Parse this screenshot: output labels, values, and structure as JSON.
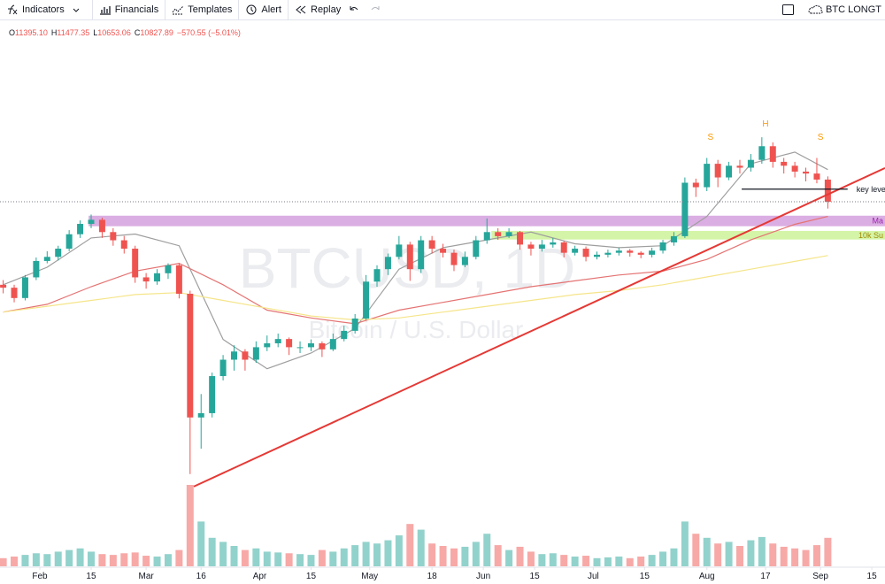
{
  "toolbar": {
    "items": [
      "Indicators",
      "Financials",
      "Templates",
      "Alert",
      "Replay"
    ],
    "layout_name": "BTC LONGT"
  },
  "chart_data": {
    "type": "candlestick",
    "symbol_watermark": "BTCUSD, 1D",
    "description_watermark": "Bitcoin / U.S. Dollar",
    "legend": [
      {
        "label": "O",
        "value": "11395.10"
      },
      {
        "label": "H",
        "value": "11477.35"
      },
      {
        "label": "L",
        "value": "10653.06"
      },
      {
        "label": "C",
        "value": "10827.89"
      }
    ],
    "change": "−570.55 (−5.01%)",
    "xlim": [
      -0.87,
      240.6
    ],
    "xticks": [
      {
        "value": 10,
        "label": "Feb"
      },
      {
        "value": 24,
        "label": "15"
      },
      {
        "value": 39,
        "label": "Mar"
      },
      {
        "value": 54,
        "label": "16"
      },
      {
        "value": 70,
        "label": "Apr"
      },
      {
        "value": 84,
        "label": "15"
      },
      {
        "value": 100,
        "label": "May"
      },
      {
        "value": 117,
        "label": "18"
      },
      {
        "value": 131,
        "label": "Jun"
      },
      {
        "value": 145,
        "label": "15"
      },
      {
        "value": 161,
        "label": "Jul"
      },
      {
        "value": 175,
        "label": "15"
      },
      {
        "value": 192,
        "label": "Aug"
      },
      {
        "value": 208,
        "label": "17"
      },
      {
        "value": 223,
        "label": "Sep"
      },
      {
        "value": 237,
        "label": "15"
      }
    ],
    "ylim": [
      3300,
      15430
    ],
    "up_color": "#26a69a",
    "down_color": "#ef5350",
    "x": [
      0,
      3,
      6,
      9,
      12,
      15,
      18,
      21,
      24,
      27,
      30,
      33,
      36,
      39,
      42,
      45,
      48,
      51,
      54,
      57,
      60,
      63,
      66,
      69,
      72,
      75,
      78,
      81,
      84,
      87,
      90,
      93,
      96,
      99,
      102,
      105,
      108,
      111,
      114,
      117,
      120,
      123,
      126,
      129,
      132,
      135,
      138,
      141,
      144,
      147,
      150,
      153,
      156,
      159,
      162,
      165,
      168,
      171,
      174,
      177,
      180,
      183,
      186,
      189,
      192,
      195,
      198,
      201,
      204,
      207,
      210,
      213,
      216,
      219,
      222,
      225
    ],
    "ohlc": [
      [
        8700,
        8820,
        8480,
        8625
      ],
      [
        8625,
        8700,
        8250,
        8360
      ],
      [
        8360,
        8950,
        8300,
        8890
      ],
      [
        8890,
        9400,
        8820,
        9310
      ],
      [
        9310,
        9560,
        9250,
        9415
      ],
      [
        9415,
        9700,
        9320,
        9625
      ],
      [
        9625,
        10100,
        9560,
        9995
      ],
      [
        9995,
        10350,
        9900,
        10260
      ],
      [
        10260,
        10500,
        10150,
        10365
      ],
      [
        10365,
        10420,
        9900,
        10050
      ],
      [
        10050,
        10150,
        9700,
        9840
      ],
      [
        9840,
        9950,
        9500,
        9625
      ],
      [
        9625,
        9700,
        8750,
        8890
      ],
      [
        8890,
        9000,
        8600,
        8785
      ],
      [
        8785,
        9100,
        8700,
        8995
      ],
      [
        8995,
        9250,
        8850,
        9200
      ],
      [
        9200,
        9250,
        8350,
        8470
      ],
      [
        8470,
        8550,
        3850,
        5300
      ],
      [
        5300,
        5900,
        4500,
        5410
      ],
      [
        5410,
        6450,
        5300,
        6360
      ],
      [
        6360,
        6900,
        6250,
        6780
      ],
      [
        6780,
        7150,
        6500,
        6990
      ],
      [
        6990,
        7050,
        6500,
        6780
      ],
      [
        6780,
        7250,
        6700,
        7100
      ],
      [
        7100,
        7400,
        7000,
        7200
      ],
      [
        7200,
        7450,
        7100,
        7310
      ],
      [
        7310,
        7350,
        6900,
        7100
      ],
      [
        7100,
        7250,
        6950,
        7100
      ],
      [
        7100,
        7300,
        7000,
        7200
      ],
      [
        7200,
        7250,
        6850,
        7045
      ],
      [
        7045,
        7450,
        7000,
        7310
      ],
      [
        7310,
        7650,
        7250,
        7520
      ],
      [
        7520,
        7950,
        7450,
        7835
      ],
      [
        7835,
        8950,
        7800,
        8780
      ],
      [
        8780,
        9200,
        8650,
        9100
      ],
      [
        9100,
        9500,
        8950,
        9415
      ],
      [
        9415,
        9950,
        9350,
        9730
      ],
      [
        9730,
        9800,
        8800,
        9100
      ],
      [
        9100,
        9950,
        9000,
        9840
      ],
      [
        9840,
        9950,
        9500,
        9625
      ],
      [
        9625,
        9750,
        9400,
        9520
      ],
      [
        9520,
        9600,
        9050,
        9205
      ],
      [
        9205,
        9550,
        9150,
        9415
      ],
      [
        9415,
        9950,
        9350,
        9840
      ],
      [
        9840,
        10400,
        9750,
        10050
      ],
      [
        10050,
        10150,
        9850,
        9945
      ],
      [
        9945,
        10150,
        9900,
        10050
      ],
      [
        10050,
        10080,
        9600,
        9730
      ],
      [
        9730,
        9800,
        9450,
        9625
      ],
      [
        9625,
        9850,
        9550,
        9730
      ],
      [
        9730,
        9900,
        9650,
        9785
      ],
      [
        9785,
        9820,
        9400,
        9520
      ],
      [
        9520,
        9700,
        9450,
        9625
      ],
      [
        9625,
        9680,
        9300,
        9415
      ],
      [
        9415,
        9550,
        9350,
        9470
      ],
      [
        9470,
        9600,
        9400,
        9520
      ],
      [
        9520,
        9650,
        9450,
        9575
      ],
      [
        9575,
        9620,
        9420,
        9520
      ],
      [
        9520,
        9560,
        9380,
        9470
      ],
      [
        9470,
        9650,
        9400,
        9575
      ],
      [
        9575,
        9850,
        9500,
        9785
      ],
      [
        9785,
        10050,
        9700,
        9945
      ],
      [
        9945,
        11450,
        9900,
        11315
      ],
      [
        11315,
        11420,
        10950,
        11200
      ],
      [
        11200,
        11950,
        11100,
        11800
      ],
      [
        11800,
        11900,
        11200,
        11450
      ],
      [
        11450,
        11850,
        11380,
        11750
      ],
      [
        11750,
        11900,
        11550,
        11700
      ],
      [
        11700,
        12050,
        11600,
        11900
      ],
      [
        11900,
        12480,
        11800,
        12250
      ],
      [
        12250,
        12350,
        11700,
        11850
      ],
      [
        11850,
        11950,
        11550,
        11750
      ],
      [
        11750,
        11850,
        11450,
        11600
      ],
      [
        11600,
        11700,
        11350,
        11550
      ],
      [
        11550,
        11950,
        11300,
        11395.1
      ],
      [
        11395.1,
        11477.35,
        10653.06,
        10827.89
      ]
    ],
    "vlim": [
      0,
      100
    ],
    "volume": [
      10,
      12,
      14,
      16,
      15,
      18,
      20,
      22,
      18,
      15,
      14,
      16,
      17,
      13,
      12,
      15,
      20,
      100,
      55,
      35,
      30,
      25,
      20,
      22,
      18,
      17,
      16,
      15,
      14,
      20,
      18,
      22,
      26,
      30,
      28,
      32,
      38,
      52,
      45,
      28,
      25,
      22,
      24,
      30,
      40,
      26,
      20,
      24,
      18,
      15,
      16,
      14,
      12,
      13,
      10,
      11,
      12,
      10,
      12,
      14,
      18,
      22,
      55,
      40,
      35,
      28,
      30,
      25,
      32,
      36,
      28,
      24,
      22,
      20,
      26,
      35
    ],
    "moving_averages": [
      {
        "color": "#9e9e9e",
        "x": [
          0,
          12,
          24,
          36,
          48,
          60,
          72,
          84,
          96,
          108,
          120,
          132,
          144,
          156,
          168,
          180,
          192,
          204,
          216,
          225
        ],
        "values": [
          8700,
          9150,
          9900,
          10000,
          9700,
          7300,
          6550,
          6950,
          7580,
          9100,
          9650,
          9850,
          10050,
          9750,
          9650,
          9700,
          10450,
          11800,
          12100,
          11650
        ]
      },
      {
        "color": "#e57373",
        "x": [
          0,
          12,
          24,
          36,
          48,
          60,
          72,
          84,
          96,
          108,
          120,
          132,
          144,
          156,
          168,
          180,
          192,
          204,
          216,
          225
        ],
        "values": [
          8000,
          8200,
          8650,
          9050,
          9250,
          8700,
          8050,
          7850,
          7700,
          8050,
          8250,
          8450,
          8650,
          8800,
          8950,
          9050,
          9350,
          9850,
          10250,
          10450
        ]
      },
      {
        "color": "#f5e58a",
        "x": [
          0,
          12,
          24,
          36,
          48,
          60,
          72,
          84,
          96,
          108,
          120,
          132,
          144,
          156,
          168,
          180,
          192,
          204,
          216,
          225
        ],
        "values": [
          8000,
          8150,
          8300,
          8450,
          8500,
          8300,
          8100,
          7900,
          7800,
          7850,
          8000,
          8150,
          8300,
          8450,
          8550,
          8700,
          8900,
          9100,
          9300,
          9450
        ]
      }
    ],
    "zones": [
      {
        "label": "Ma",
        "x": [
          23.3,
          240.6
        ],
        "range": [
          10200,
          10470
        ],
        "color": "#ce93d8",
        "text_color": "#9c27b0"
      },
      {
        "label": "10k Su",
        "x": [
          133.2,
          240.6
        ],
        "range": [
          9860,
          10080
        ],
        "color": "#c5f08a",
        "text_color": "#a08a00"
      }
    ],
    "key_level": {
      "label": "key leve",
      "x": [
        201.5,
        230.4
      ],
      "value": 11150
    },
    "trendline": {
      "color": "#e53935",
      "x": [
        52,
        240.6
      ],
      "values": [
        3530,
        11690
      ]
    },
    "pattern_labels": [
      {
        "text": "S",
        "x": 193,
        "price": 12420
      },
      {
        "text": "H",
        "x": 208,
        "price": 12760
      },
      {
        "text": "S",
        "x": 223,
        "price": 12420
      }
    ]
  }
}
